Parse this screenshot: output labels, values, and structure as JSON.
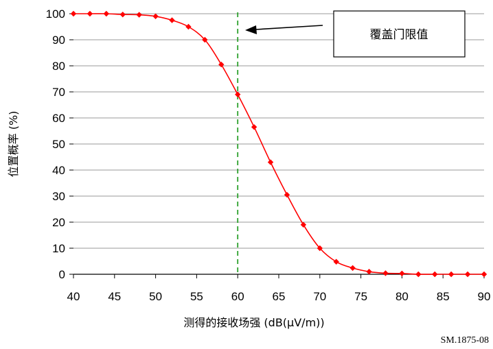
{
  "chart_data": {
    "type": "line",
    "title": "",
    "xlabel": "测得的接收场强 (dB(μV/m))",
    "ylabel": "位置概率 (%)",
    "xlim": [
      40,
      90
    ],
    "ylim": [
      0,
      100
    ],
    "x_ticks": [
      40,
      45,
      50,
      55,
      60,
      65,
      70,
      75,
      80,
      85,
      90
    ],
    "y_ticks": [
      0,
      10,
      20,
      30,
      40,
      50,
      60,
      70,
      80,
      90,
      100
    ],
    "grid": "horizontal",
    "series": [
      {
        "color": "#ff0000",
        "x": [
          40,
          42,
          44,
          46,
          48,
          50,
          52,
          54,
          56,
          58,
          60,
          62,
          64,
          66,
          68,
          70,
          72,
          74,
          76,
          78,
          80,
          82,
          84,
          86,
          88,
          90
        ],
        "y": [
          100,
          100,
          100,
          99.7,
          99.6,
          99,
          97.5,
          95,
          90,
          80.5,
          69,
          56.5,
          43,
          30.5,
          19,
          10,
          4.8,
          2.4,
          1,
          0.4,
          0.3,
          0,
          0,
          0,
          0,
          0
        ]
      }
    ],
    "threshold": {
      "x": 60,
      "color": "#2ca02c"
    },
    "annotation": {
      "text": "覆盖门限值"
    }
  },
  "figure_id": "SM.1875-08"
}
